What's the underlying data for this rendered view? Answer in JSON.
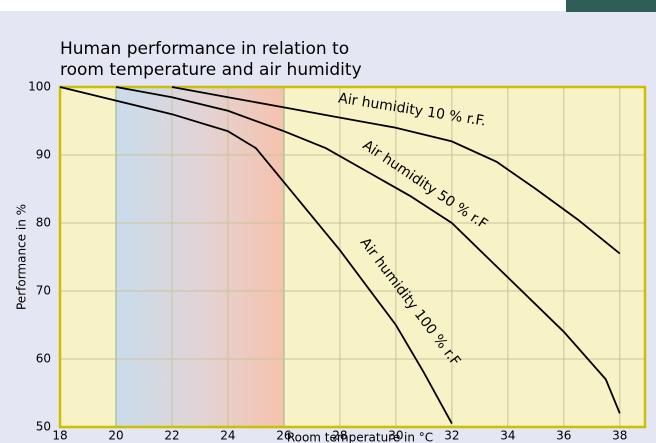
{
  "chart_data": {
    "type": "line",
    "title": [
      "Human performance in relation to",
      "room temperature and air humidity"
    ],
    "x_label": "Room temperature in °C",
    "y_label": "Performance in %",
    "xlim": [
      18,
      38.9
    ],
    "ylim": [
      50,
      100
    ],
    "xticks": [
      18,
      20,
      22,
      24,
      26,
      28,
      30,
      32,
      34,
      36,
      38
    ],
    "yticks": [
      50,
      60,
      70,
      80,
      90,
      100
    ],
    "grid": true,
    "comfort_zone": [
      20,
      26
    ],
    "series": [
      {
        "name": "Air humidity 10 % r.F.",
        "color": "#000000",
        "x": [
          22,
          24,
          26,
          28,
          30,
          32,
          33.6,
          35,
          36.5,
          38
        ],
        "values": [
          100,
          98.5,
          97,
          95.5,
          94,
          92,
          89,
          85,
          80.5,
          75.5
        ]
      },
      {
        "name": "Air humidity 50 % r.F",
        "color": "#000000",
        "x": [
          20,
          22,
          24,
          26,
          27.5,
          29,
          30.5,
          32,
          34,
          36,
          37.5,
          38
        ],
        "values": [
          100,
          98.5,
          96.5,
          93.5,
          91,
          87.5,
          84,
          80,
          72,
          64,
          57,
          52
        ]
      },
      {
        "name": "Air humidity 100 % r.F",
        "color": "#000000",
        "x": [
          18,
          20,
          22,
          24,
          25,
          26,
          28,
          30,
          31,
          32
        ],
        "values": [
          100,
          98,
          96,
          93.5,
          91,
          86,
          76,
          65,
          58,
          50.5
        ]
      }
    ]
  }
}
